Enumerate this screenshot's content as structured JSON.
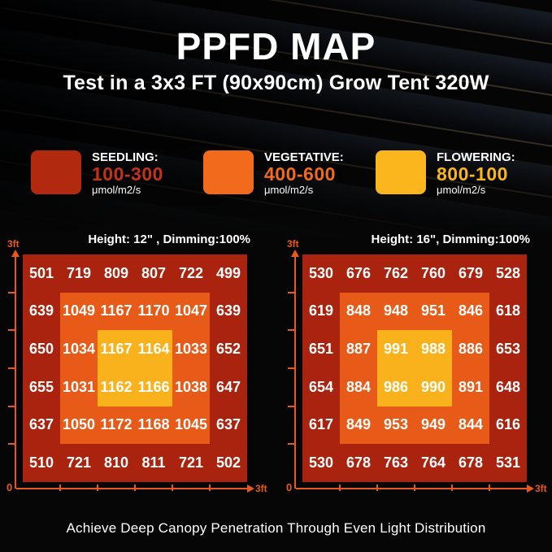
{
  "header": {
    "title": "PPFD MAP",
    "subtitle": "Test in a 3x3 FT (90x90cm) Grow Tent 320W"
  },
  "legend": {
    "items": [
      {
        "label": "SEEDLING:",
        "range": "100-300",
        "unit": "μmol/m2/s",
        "color": "#b1290f"
      },
      {
        "label": "VEGETATIVE:",
        "range": "400-600",
        "unit": "μmol/m2/s",
        "color": "#f26a1b"
      },
      {
        "label": "FLOWERING:",
        "range": "800-100",
        "unit": "μmol/m2/s",
        "color": "#fbb61d"
      }
    ]
  },
  "chart_data": [
    {
      "type": "heatmap",
      "title": "Height: 12\" , Dimming:100%",
      "rows": 6,
      "cols": 6,
      "x_axis": {
        "origin_label": "0",
        "max_label": "3ft"
      },
      "y_axis": {
        "max_label": "3ft"
      },
      "values": [
        [
          501,
          719,
          809,
          807,
          722,
          499
        ],
        [
          639,
          1049,
          1167,
          1170,
          1047,
          639
        ],
        [
          650,
          1034,
          1167,
          1164,
          1033,
          652
        ],
        [
          655,
          1031,
          1162,
          1166,
          1038,
          647
        ],
        [
          637,
          1050,
          1172,
          1168,
          1045,
          637
        ],
        [
          510,
          721,
          810,
          811,
          721,
          502
        ]
      ]
    },
    {
      "type": "heatmap",
      "title": "Height: 16\", Dimming:100%",
      "rows": 6,
      "cols": 6,
      "x_axis": {
        "origin_label": "0",
        "max_label": "3ft"
      },
      "y_axis": {
        "max_label": "3ft"
      },
      "values": [
        [
          530,
          676,
          762,
          760,
          679,
          528
        ],
        [
          619,
          848,
          948,
          951,
          846,
          618
        ],
        [
          651,
          887,
          991,
          988,
          886,
          653
        ],
        [
          654,
          884,
          986,
          990,
          891,
          648
        ],
        [
          617,
          849,
          953,
          949,
          844,
          616
        ],
        [
          530,
          678,
          763,
          764,
          678,
          531
        ]
      ]
    }
  ],
  "footer": {
    "caption": "Achieve Deep Canopy Penetration Through Even Light Distribution"
  },
  "colors": {
    "background": "#060606",
    "zone_outer": "#aa230f",
    "zone_mid": "#e75a17",
    "zone_center": "#f9b21c",
    "axis": "#e8581c",
    "text": "#ffffff"
  }
}
